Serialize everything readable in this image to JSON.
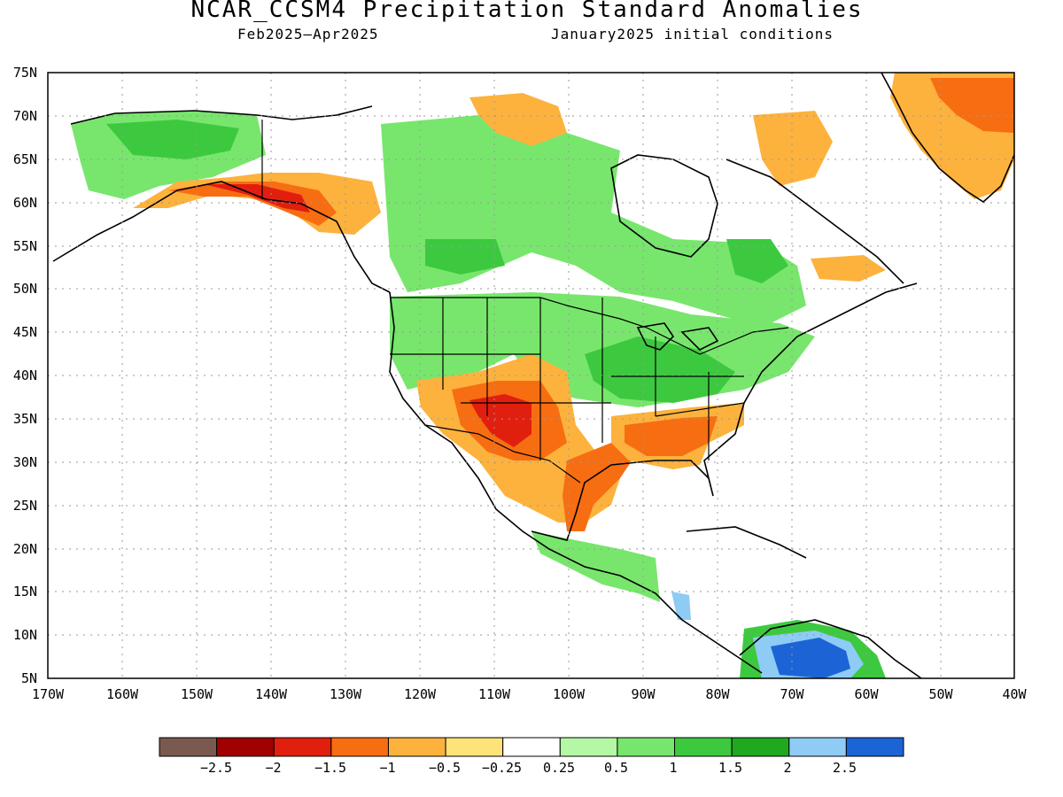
{
  "title": "NCAR_CCSM4 Precipitation Standard Anomalies",
  "subtitle_left": "Feb2025–Apr2025",
  "subtitle_right": "January2025 initial conditions",
  "lat_labels": [
    "75N",
    "70N",
    "65N",
    "60N",
    "55N",
    "50N",
    "45N",
    "40N",
    "35N",
    "30N",
    "25N",
    "20N",
    "15N",
    "10N",
    "5N"
  ],
  "lon_labels": [
    "170W",
    "160W",
    "150W",
    "140W",
    "130W",
    "120W",
    "110W",
    "100W",
    "90W",
    "80W",
    "70W",
    "60W",
    "50W",
    "40W"
  ],
  "legend": {
    "labels": [
      "−2.5",
      "−2",
      "−1.5",
      "−1",
      "−0.5",
      "−0.25",
      "0.25",
      "0.5",
      "1",
      "1.5",
      "2",
      "2.5"
    ],
    "colors": [
      "#7a5a4e",
      "#a00000",
      "#e11f0f",
      "#f76d12",
      "#fcb23d",
      "#fde37a",
      "#ffffff",
      "#b4f7a5",
      "#78e66d",
      "#3dc93f",
      "#20a820",
      "#8ecbf5",
      "#1c64d6"
    ]
  },
  "anomaly_colors": {
    "dry_strong": "#e11f0f",
    "dry": "#f76d12",
    "dry_mild": "#fcb23d",
    "dry_weak": "#fde37a",
    "wet_weak": "#b4f7a5",
    "wet": "#78e66d",
    "wet_mod": "#3dc93f",
    "wet_strong": "#20a820",
    "wet_blue": "#8ecbf5",
    "wet_blue_strong": "#1c64d6"
  }
}
